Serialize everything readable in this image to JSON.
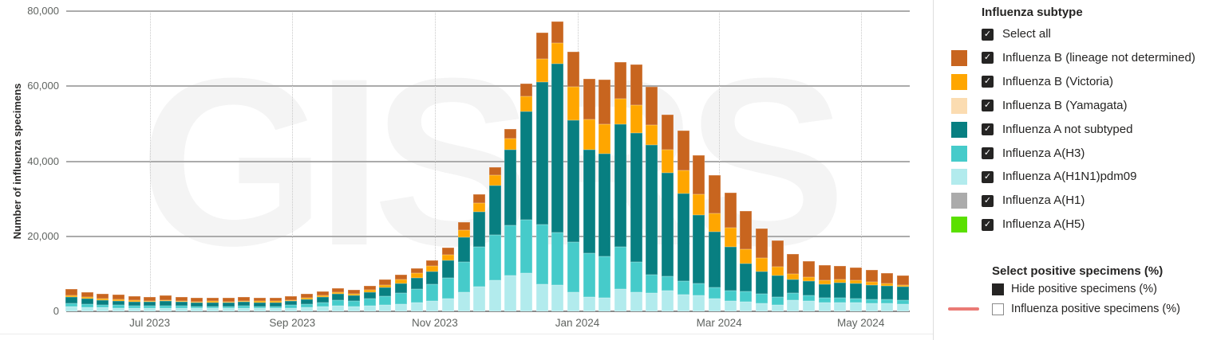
{
  "chart": {
    "watermark": "GISRS",
    "y_axis": {
      "title": "Number of influenza specimens",
      "ticks": [
        "0",
        "20,000",
        "40,000",
        "60,000",
        "80,000"
      ],
      "max": 80000
    },
    "x_axis": {
      "labels": [
        "Jul 2023",
        "Sep 2023",
        "Nov 2023",
        "Jan 2024",
        "Mar 2024",
        "May 2024"
      ],
      "positions_pct": [
        9.9,
        26.8,
        43.7,
        60.6,
        77.4,
        94.2
      ]
    }
  },
  "chart_data": {
    "type": "bar",
    "stacked": true,
    "title": "",
    "ylabel": "Number of influenza specimens",
    "ylim": [
      0,
      80000
    ],
    "x_description": "54 weekly bars, ~Jun 2023 to ~Jun 2024; axis labeled with months only",
    "weeks_count": 54,
    "month_labels": [
      "Jul 2023",
      "Sep 2023",
      "Nov 2023",
      "Jan 2024",
      "Mar 2024",
      "May 2024"
    ],
    "grid": true,
    "legend_position": "right",
    "series_not_visible": [
      "Influenza B (Yamagata)",
      "Influenza A(H1)",
      "Influenza A(H5)"
    ],
    "series": [
      {
        "name": "Influenza A(H1N1)pdm09",
        "color": "#b2ebed",
        "values": [
          1300,
          1100,
          1000,
          950,
          900,
          850,
          900,
          800,
          780,
          800,
          780,
          830,
          800,
          800,
          900,
          1050,
          1200,
          1400,
          1300,
          1500,
          1700,
          1900,
          2300,
          2700,
          3400,
          5000,
          6600,
          8200,
          9500,
          10200,
          7200,
          7000,
          5000,
          3900,
          3600,
          5900,
          5200,
          4900,
          5500,
          4500,
          4300,
          3500,
          2800,
          2500,
          2100,
          1700,
          2900,
          2700,
          2400,
          2400,
          2400,
          2200,
          2100,
          2000
        ]
      },
      {
        "name": "Influenza A(H3)",
        "color": "#46cbca",
        "values": [
          900,
          800,
          700,
          650,
          600,
          600,
          650,
          600,
          550,
          570,
          550,
          600,
          580,
          580,
          700,
          900,
          1200,
          1550,
          1400,
          1800,
          2400,
          3000,
          3700,
          4500,
          5600,
          8200,
          10500,
          12200,
          13500,
          14200,
          16000,
          14000,
          13500,
          11700,
          11000,
          11300,
          8000,
          4900,
          3900,
          3600,
          3200,
          2800,
          2800,
          2800,
          2500,
          2100,
          2000,
          1600,
          1200,
          1300,
          1100,
          1000,
          1000,
          900
        ]
      },
      {
        "name": "Influenza A not subtyped",
        "color": "#087f81",
        "values": [
          1600,
          1450,
          1300,
          1200,
          1100,
          1050,
          1150,
          1050,
          1000,
          1020,
          1000,
          1050,
          1020,
          1020,
          1100,
          1250,
          1400,
          1650,
          1550,
          1800,
          2200,
          2500,
          3000,
          3500,
          4600,
          6500,
          9500,
          13200,
          20000,
          28800,
          38000,
          44900,
          32400,
          27400,
          27400,
          32700,
          34300,
          34600,
          27600,
          23400,
          18100,
          15000,
          11700,
          7400,
          6000,
          5700,
          3700,
          3800,
          3700,
          3900,
          4000,
          3900,
          3700,
          3600
        ]
      },
      {
        "name": "Influenza B (Victoria)",
        "color": "#ffa600",
        "values": [
          500,
          450,
          400,
          400,
          350,
          300,
          350,
          300,
          280,
          290,
          280,
          300,
          290,
          290,
          300,
          350,
          400,
          500,
          450,
          600,
          800,
          1000,
          1100,
          1300,
          1500,
          1900,
          2300,
          2700,
          3100,
          4200,
          6000,
          5700,
          8900,
          8200,
          7800,
          6800,
          7500,
          5300,
          6000,
          6000,
          5700,
          4900,
          5000,
          3900,
          3600,
          2400,
          1400,
          1100,
          900,
          900,
          700,
          700,
          600,
          500
        ]
      },
      {
        "name": "Influenza B (lineage not determined)",
        "color": "#c8651f",
        "values": [
          1600,
          1400,
          1300,
          1200,
          1150,
          1100,
          1150,
          1050,
          990,
          1020,
          990,
          1020,
          1010,
          1010,
          1000,
          1050,
          1100,
          1150,
          1100,
          1200,
          1300,
          1300,
          1400,
          1500,
          1900,
          2200,
          2200,
          2100,
          2600,
          3400,
          7000,
          5600,
          9400,
          10800,
          11900,
          9700,
          10700,
          10100,
          9500,
          10700,
          10200,
          10000,
          9400,
          10100,
          7800,
          7100,
          5200,
          4100,
          4200,
          3700,
          3500,
          3200,
          2700,
          2600
        ]
      }
    ]
  },
  "legend": {
    "title": "Influenza subtype",
    "checkmark": "✓",
    "items": [
      {
        "label": "Select all",
        "checked": true,
        "color": null
      },
      {
        "label": "Influenza B (lineage not determined)",
        "checked": true,
        "color": "#c8651f"
      },
      {
        "label": "Influenza B (Victoria)",
        "checked": true,
        "color": "#ffa600"
      },
      {
        "label": "Influenza B (Yamagata)",
        "checked": true,
        "color": "#fbdcb1"
      },
      {
        "label": "Influenza A not subtyped",
        "checked": true,
        "color": "#087f81"
      },
      {
        "label": "Influenza A(H3)",
        "checked": true,
        "color": "#46cbca"
      },
      {
        "label": "Influenza A(H1N1)pdm09",
        "checked": true,
        "color": "#b2ebed"
      },
      {
        "label": "Influenza A(H1)",
        "checked": true,
        "color": "#ababab"
      },
      {
        "label": "Influenza A(H5)",
        "checked": true,
        "color": "#5ae000"
      }
    ]
  },
  "positive_legend": {
    "title": "Select positive specimens (%)",
    "items": [
      {
        "label": "Hide positive specimens (%)",
        "marker": "filled-box"
      },
      {
        "label": "Influenza positive specimens (%)",
        "marker": "line",
        "line_color": "#ea7a75"
      }
    ]
  }
}
